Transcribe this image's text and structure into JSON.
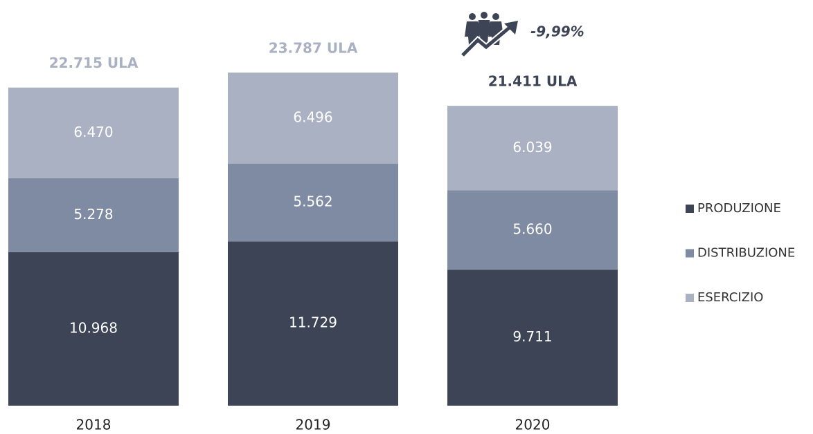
{
  "chart_data": {
    "type": "stacked_bar",
    "categories": [
      "2018",
      "2019",
      "2020"
    ],
    "series": [
      {
        "name": "PRODUZIONE",
        "color": "#3c4456",
        "values": [
          10968,
          11729,
          9711
        ],
        "value_labels": [
          "10.968",
          "11.729",
          "9.711"
        ]
      },
      {
        "name": "DISTRIBUZIONE",
        "color": "#7e8ba3",
        "values": [
          5278,
          5562,
          5660
        ],
        "value_labels": [
          "5.278",
          "5.562",
          "5.660"
        ]
      },
      {
        "name": "ESERCIZIO",
        "color": "#a9b1c2",
        "values": [
          6470,
          6496,
          6039
        ],
        "value_labels": [
          "6.470",
          "6.496",
          "6.039"
        ]
      }
    ],
    "annotations": [
      "22.715 ULA",
      "23.787 ULA",
      "21.411 ULA"
    ],
    "change": "-9,99%"
  }
}
